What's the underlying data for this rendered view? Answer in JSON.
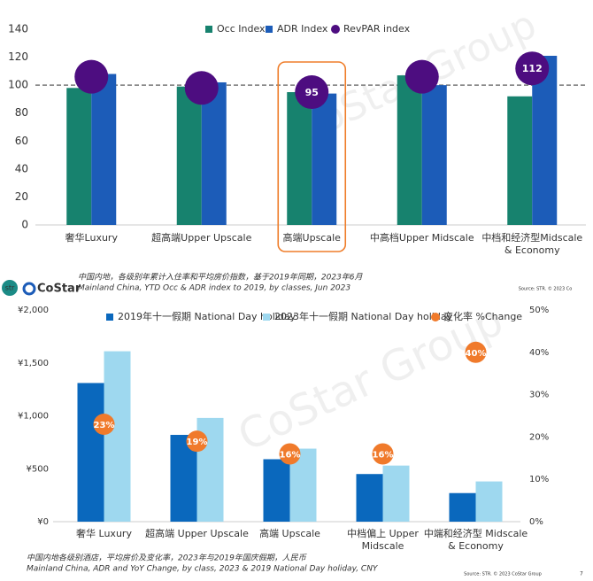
{
  "watermark": "CoStar Group",
  "logos": {
    "str": "str",
    "costar": "CoStar"
  },
  "chart_data": [
    {
      "type": "combo",
      "categories": [
        "奢华Luxury",
        "超高端Upper Upscale",
        "高端Upscale",
        "中高档Upper Midscale",
        "中档和经济型Midscale & Economy"
      ],
      "series": [
        {
          "name": "Occ Index",
          "type": "bar",
          "color": "#17826e",
          "values": [
            98,
            99,
            95,
            107,
            92
          ]
        },
        {
          "name": "ADR Index",
          "type": "bar",
          "color": "#1c5cb8",
          "values": [
            108,
            102,
            94,
            100,
            121
          ]
        },
        {
          "name": "RevPAR index",
          "type": "dot",
          "color": "#4d0d80",
          "values": [
            106,
            98,
            95,
            106,
            112
          ],
          "value_labels": [
            null,
            null,
            "95",
            null,
            "112"
          ]
        }
      ],
      "ylim": [
        0,
        140
      ],
      "yticks": [
        0,
        20,
        40,
        60,
        80,
        100,
        120,
        140
      ],
      "reference_line": 100,
      "highlight_category": 2,
      "notes": [
        "中国内地，各级别年累计入住率和平均房价指数，基于2019年同期，2023年6月",
        "Mainland China, YTD Occ & ADR index to 2019, by classes, Jun 2023"
      ],
      "source": "Source: STR. © 2023 Co"
    },
    {
      "type": "combo",
      "categories": [
        "奢华 Luxury",
        "超高端 Upper Upscale",
        "高端 Upscale",
        "中档偏上 Upper Midscale",
        "中端和经济型 Midscale & Economy"
      ],
      "series": [
        {
          "name": "2019年十一假期 National Day holiday",
          "type": "bar",
          "color": "#0a68bd",
          "values": [
            1310,
            820,
            590,
            450,
            270
          ]
        },
        {
          "name": "2023年十一假期 National Day holiday",
          "type": "bar",
          "color": "#9ed8ef",
          "values": [
            1610,
            980,
            690,
            530,
            380
          ]
        },
        {
          "name": "变化率 %Change",
          "type": "dot",
          "axis": "y2",
          "color": "#f07a2b",
          "values": [
            23,
            19,
            16,
            16,
            40
          ],
          "value_labels": [
            "23%",
            "19%",
            "16%",
            "16%",
            "40%"
          ]
        }
      ],
      "ylim": [
        0,
        2000
      ],
      "yticks": [
        {
          "value": 0,
          "label": "¥0"
        },
        {
          "value": 500,
          "label": "¥500"
        },
        {
          "value": 1000,
          "label": "¥1,000"
        },
        {
          "value": 1500,
          "label": "¥1,500"
        },
        {
          "value": 2000,
          "label": "¥2,000"
        }
      ],
      "y2lim": [
        0,
        50
      ],
      "y2ticks": [
        {
          "value": 0,
          "label": "0%"
        },
        {
          "value": 10,
          "label": "10%"
        },
        {
          "value": 20,
          "label": "20%"
        },
        {
          "value": 30,
          "label": "30%"
        },
        {
          "value": 40,
          "label": "40%"
        },
        {
          "value": 50,
          "label": "50%"
        }
      ],
      "notes": [
        "中国内地各级别酒店，平均房价及变化率，2023年与2019年国庆假期，人民币",
        "Mainland China, ADR and YoY Change, by class, 2023 & 2019 National Day holiday, CNY"
      ],
      "source": "Source: STR. © 2023 CoStar Group",
      "page": "7"
    }
  ]
}
